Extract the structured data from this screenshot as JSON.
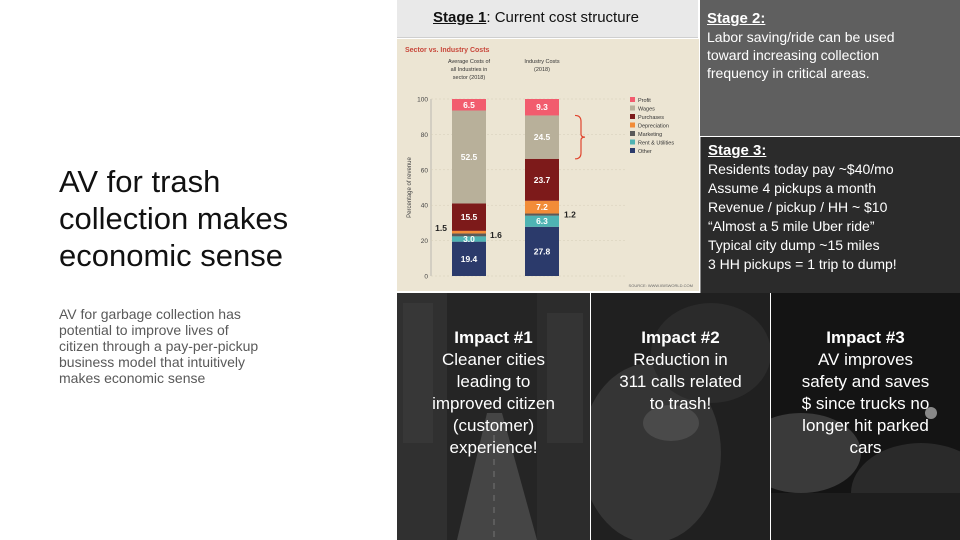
{
  "slide": {
    "title_lines": [
      "AV for trash",
      "collection makes",
      "economic sense"
    ],
    "body_lines": [
      "AV for garbage collection has",
      "potential to improve lives of",
      "citizen through a pay-per-pickup",
      "business model that intuitively",
      "makes economic sense"
    ]
  },
  "stage1": {
    "label": "Stage 1",
    "text": ": Current cost structure"
  },
  "stage2": {
    "label": "Stage 2:",
    "lines": [
      "Labor saving/ride can be used",
      "toward increasing collection",
      "frequency in critical areas."
    ]
  },
  "stage3": {
    "label": "Stage 3:",
    "lines": [
      "Residents today pay ~$40/mo",
      "Assume 4 pickups a month",
      "Revenue / pickup / HH ~ $10",
      "“Almost a 5 mile Uber ride”",
      "Typical city dump ~15 miles",
      "3 HH pickups = 1 trip to dump!"
    ]
  },
  "chart_data": {
    "type": "bar",
    "stacked": true,
    "title": "Sector vs. Industry Costs",
    "ylabel": "Percentage of revenue",
    "ylim": [
      0,
      100
    ],
    "yticks": [
      0,
      20,
      40,
      60,
      80,
      100
    ],
    "categories": [
      "Average Costs of all Industries in sector (2018)",
      "Industry Costs (2018)"
    ],
    "category_labels": [
      [
        "Average Costs of",
        "all Industries in",
        "sector (2018)"
      ],
      [
        "Industry Costs",
        "(2018)"
      ]
    ],
    "series": [
      {
        "name": "Other",
        "color": "#2b3a6b",
        "values": [
          19.4,
          27.8
        ]
      },
      {
        "name": "Rent & Utilities",
        "color": "#4fb3b3",
        "values": [
          3.0,
          6.3
        ]
      },
      {
        "name": "Marketing",
        "color": "#5a5a5a",
        "values": [
          1.6,
          1.2
        ]
      },
      {
        "name": "Depreciation",
        "color": "#f28c38",
        "values": [
          1.5,
          7.2
        ]
      },
      {
        "name": "Purchases",
        "color": "#7d1a1a",
        "values": [
          15.5,
          23.7
        ]
      },
      {
        "name": "Wages",
        "color": "#b8b09a",
        "values": [
          52.5,
          24.5
        ]
      },
      {
        "name": "Profit",
        "color": "#f25c6e",
        "values": [
          6.5,
          9.3
        ]
      }
    ],
    "legend_order": [
      "Profit",
      "Wages",
      "Purchases",
      "Depreciation",
      "Marketing",
      "Rent & Utilities",
      "Other"
    ],
    "source": "SOURCE: WWW.IBISWORLD.COM"
  },
  "impacts": [
    {
      "title": "Impact #1",
      "lines": [
        "Cleaner cities",
        "leading to",
        "improved citizen",
        "(customer)",
        "experience!"
      ]
    },
    {
      "title": "Impact #2",
      "lines": [
        "Reduction in",
        "311 calls related",
        "to trash!"
      ]
    },
    {
      "title": "Impact #3",
      "lines": [
        "AV improves",
        "safety and saves",
        "$ since  trucks no",
        "longer hit parked",
        "cars"
      ]
    }
  ]
}
